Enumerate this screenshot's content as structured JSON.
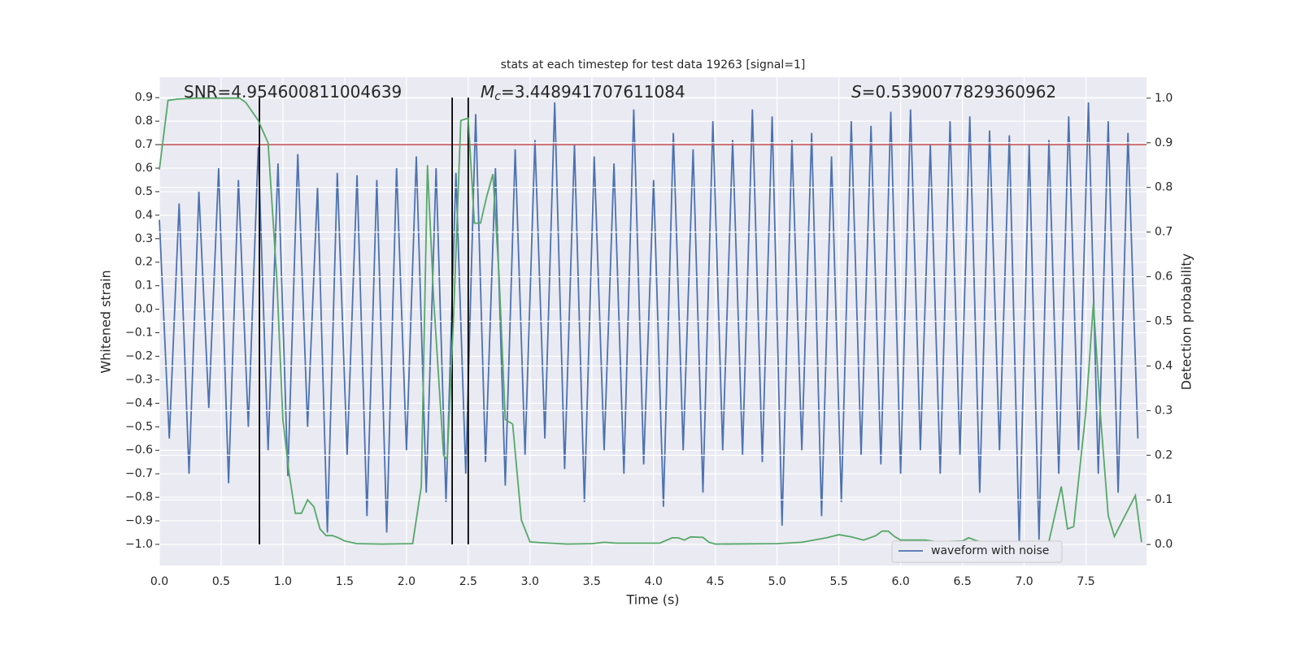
{
  "chart_data": {
    "type": "line",
    "title": "stats at each timestep for test data 19263 [signal=1]",
    "xlabel": "Time (s)",
    "ylabel": "Whitened strain",
    "y2label": "Detection probability",
    "annotations": [
      {
        "text": "SNR=4.954600811004639"
      },
      {
        "symbol": "M",
        "subscript": "c",
        "text": "=3.448941707611084"
      },
      {
        "symbol": "S",
        "text": "=0.5390077829360962"
      }
    ],
    "xlim": [
      0,
      7.99
    ],
    "ylim": [
      -1.09,
      0.987
    ],
    "y2lim": [
      -0.047,
      1.047
    ],
    "xticks": [
      {
        "value": 0,
        "label": "0.0"
      },
      0.5,
      {
        "value": 1,
        "label": "1.0"
      },
      1.5,
      {
        "value": 2,
        "label": "2.0"
      },
      2.5,
      {
        "value": 3,
        "label": "3.0"
      },
      3.5,
      {
        "value": 4,
        "label": "4.0"
      },
      4.5,
      {
        "value": 5,
        "label": "5.0"
      },
      5.5,
      {
        "value": 6,
        "label": "6.0"
      },
      6.5,
      {
        "value": 7,
        "label": "7.0"
      },
      7.5
    ],
    "yticks": [
      {
        "value": -1.0,
        "label": "−1.0"
      },
      {
        "value": -0.9,
        "label": "−0.9"
      },
      {
        "value": -0.8,
        "label": "−0.8"
      },
      {
        "value": -0.7,
        "label": "−0.7"
      },
      {
        "value": -0.6,
        "label": "−0.6"
      },
      {
        "value": -0.5,
        "label": "−0.5"
      },
      {
        "value": -0.4,
        "label": "−0.4"
      },
      {
        "value": -0.3,
        "label": "−0.3"
      },
      {
        "value": -0.2,
        "label": "−0.2"
      },
      {
        "value": -0.1,
        "label": "−0.1"
      },
      {
        "value": 0,
        "label": "0.0"
      },
      0.1,
      0.2,
      0.3,
      0.4,
      0.5,
      0.6,
      0.7,
      0.8,
      0.9
    ],
    "y2ticks": [
      {
        "value": 0,
        "label": "0.0"
      },
      0.1,
      0.2,
      0.3,
      0.4,
      0.5,
      0.6,
      0.7,
      0.8,
      0.9,
      {
        "value": 1,
        "label": "1.0"
      }
    ],
    "grid": true,
    "legend_loc": "lower right",
    "hline": {
      "y": 0.7,
      "color": "#c44e52"
    },
    "vlines": {
      "x": [
        0.81,
        2.37,
        2.5
      ],
      "ymin": -1.0,
      "ymax": 0.9,
      "color": "#000000"
    },
    "series": [
      {
        "name": "waveform with noise",
        "color": "#4c72b0",
        "x": [
          0,
          0.08,
          0.16,
          0.24,
          0.32,
          0.4,
          0.48,
          0.56,
          0.64,
          0.72,
          0.8,
          0.88,
          0.96,
          1.04,
          1.12,
          1.2,
          1.28,
          1.36,
          1.44,
          1.52,
          1.6,
          1.68,
          1.76,
          1.84,
          1.92,
          2,
          2.08,
          2.16,
          2.24,
          2.32,
          2.4,
          2.48,
          2.56,
          2.64,
          2.72,
          2.8,
          2.88,
          2.96,
          3.04,
          3.12,
          3.2,
          3.28,
          3.36,
          3.44,
          3.52,
          3.6,
          3.68,
          3.76,
          3.84,
          3.92,
          4,
          4.08,
          4.16,
          4.24,
          4.32,
          4.4,
          4.48,
          4.56,
          4.64,
          4.72,
          4.8,
          4.88,
          4.96,
          5.04,
          5.12,
          5.2,
          5.28,
          5.36,
          5.44,
          5.52,
          5.6,
          5.68,
          5.76,
          5.84,
          5.92,
          6,
          6.08,
          6.16,
          6.24,
          6.32,
          6.4,
          6.48,
          6.56,
          6.64,
          6.72,
          6.8,
          6.88,
          6.96,
          7.04,
          7.12,
          7.2,
          7.28,
          7.36,
          7.44,
          7.52,
          7.6,
          7.68,
          7.76,
          7.84,
          7.92
        ],
        "values": [
          0.38,
          -0.55,
          0.45,
          -0.7,
          0.5,
          -0.42,
          0.6,
          -0.74,
          0.55,
          -0.5,
          0.69,
          -0.6,
          0.62,
          -0.71,
          0.66,
          -0.5,
          0.52,
          -0.95,
          0.58,
          -0.62,
          0.57,
          -0.88,
          0.55,
          -0.95,
          0.6,
          -0.6,
          0.65,
          -0.78,
          0.6,
          -0.82,
          0.58,
          -0.7,
          0.83,
          -0.65,
          0.6,
          -0.75,
          0.68,
          -0.62,
          0.72,
          -0.55,
          0.88,
          -0.68,
          0.7,
          -0.82,
          0.65,
          -0.6,
          0.62,
          -0.7,
          0.85,
          -0.66,
          0.55,
          -0.84,
          0.75,
          -0.6,
          0.68,
          -0.78,
          0.8,
          -0.6,
          0.72,
          -0.62,
          0.85,
          -0.65,
          0.82,
          -0.92,
          0.72,
          -0.6,
          0.75,
          -0.88,
          0.65,
          -0.82,
          0.8,
          -0.62,
          0.78,
          -0.66,
          0.84,
          -0.7,
          0.85,
          -0.6,
          0.7,
          -0.7,
          0.8,
          -0.62,
          0.82,
          -0.78,
          0.76,
          -0.6,
          0.74,
          -1.0,
          0.7,
          -0.98,
          0.72,
          -0.7,
          0.82,
          -0.6,
          0.88,
          -0.7,
          0.8,
          -0.78,
          0.75,
          -0.55
        ]
      },
      {
        "color": "#55a868",
        "axis": "y2",
        "x": [
          0,
          0.07,
          0.15,
          0.3,
          0.5,
          0.65,
          0.7,
          0.8,
          0.88,
          0.95,
          1.0,
          1.05,
          1.1,
          1.15,
          1.2,
          1.25,
          1.3,
          1.35,
          1.4,
          1.45,
          1.5,
          1.6,
          1.8,
          2.05,
          2.12,
          2.17,
          2.22,
          2.3,
          2.33,
          2.38,
          2.44,
          2.5,
          2.55,
          2.6,
          2.65,
          2.7,
          2.75,
          2.8,
          2.86,
          2.93,
          3.0,
          3.1,
          3.3,
          3.5,
          3.6,
          3.7,
          3.9,
          4.05,
          4.15,
          4.2,
          4.25,
          4.3,
          4.4,
          4.45,
          4.5,
          5.0,
          5.2,
          5.4,
          5.5,
          5.6,
          5.7,
          5.8,
          5.85,
          5.9,
          5.95,
          6.0,
          6.2,
          6.3,
          6.5,
          6.55,
          6.6,
          6.7,
          6.9,
          7.05,
          7.15,
          7.2,
          7.3,
          7.35,
          7.4,
          7.5,
          7.56,
          7.62,
          7.68,
          7.73,
          7.9,
          7.95
        ],
        "values": [
          0.84,
          0.995,
          0.998,
          1.0,
          1.0,
          1.0,
          0.99,
          0.95,
          0.9,
          0.6,
          0.28,
          0.16,
          0.07,
          0.07,
          0.1,
          0.085,
          0.035,
          0.02,
          0.02,
          0.015,
          0.008,
          0.002,
          0.001,
          0.002,
          0.13,
          0.85,
          0.55,
          0.2,
          0.19,
          0.5,
          0.95,
          0.955,
          0.72,
          0.72,
          0.78,
          0.83,
          0.6,
          0.28,
          0.27,
          0.055,
          0.006,
          0.004,
          0.001,
          0.002,
          0.005,
          0.003,
          0.003,
          0.003,
          0.015,
          0.015,
          0.01,
          0.017,
          0.016,
          0.005,
          0.001,
          0.002,
          0.005,
          0.015,
          0.022,
          0.017,
          0.01,
          0.02,
          0.03,
          0.03,
          0.018,
          0.01,
          0.01,
          0.006,
          0.008,
          0.015,
          0.01,
          0.002,
          0.001,
          0.002,
          0.003,
          0.007,
          0.13,
          0.035,
          0.04,
          0.3,
          0.54,
          0.28,
          0.065,
          0.018,
          0.11,
          0.005
        ]
      }
    ]
  }
}
